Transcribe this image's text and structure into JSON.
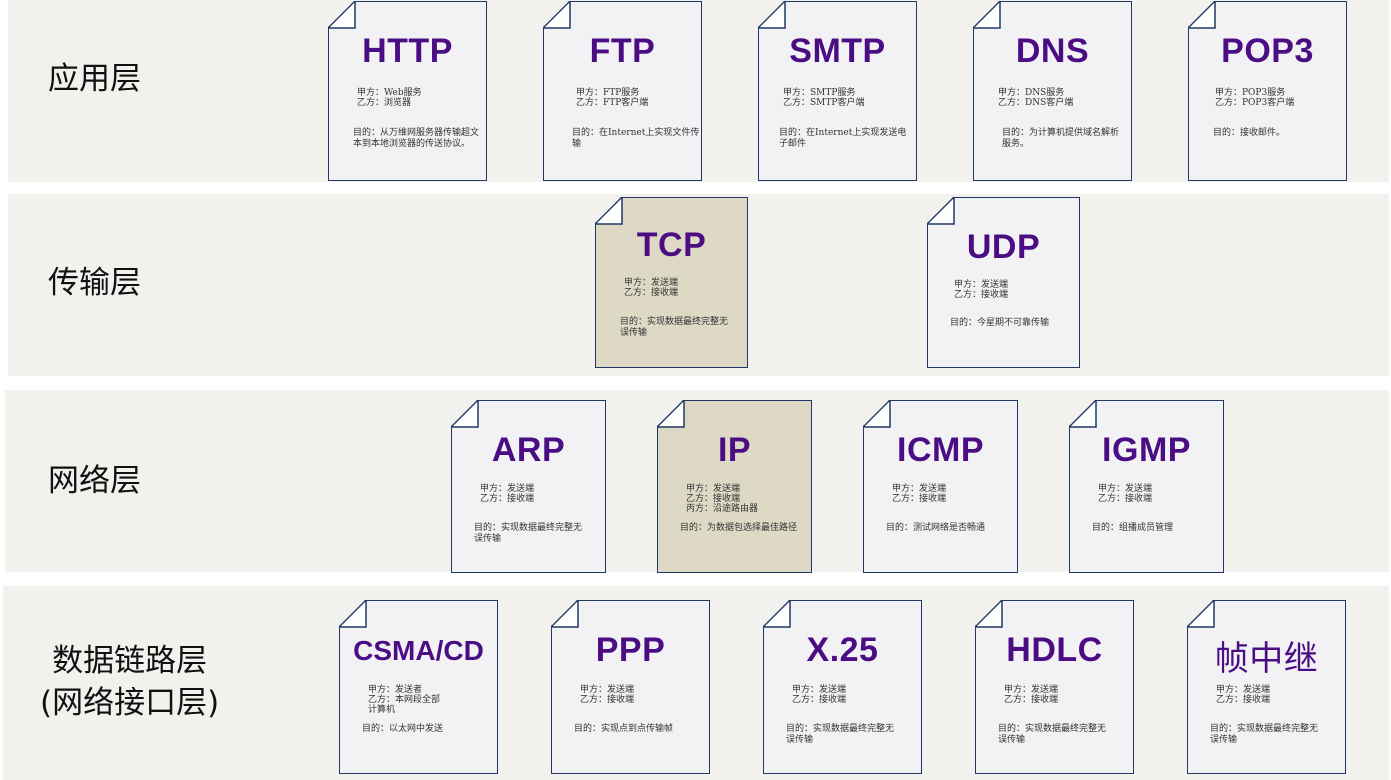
{
  "layers": [
    {
      "label": "应用层",
      "protocols": [
        {
          "title": "HTTP",
          "roles": "甲方：Web服务\n乙方：浏览器",
          "purpose": "目的：从万维网服务器传输超文\n本到本地浏览器的传送协议。",
          "highlight": false
        },
        {
          "title": "FTP",
          "roles": "甲方：FTP服务\n乙方：FTP客户端",
          "purpose": "目的：在Internet上实现文件传输",
          "highlight": false
        },
        {
          "title": "SMTP",
          "roles": "甲方：SMTP服务\n乙方：SMTP客户端",
          "purpose": "目的：在Internet上实现发送电\n子邮件",
          "highlight": false
        },
        {
          "title": "DNS",
          "roles": "甲方：DNS服务\n乙方：DNS客户端",
          "purpose": "目的：为计算机提供域名解析\n服务。",
          "highlight": false
        },
        {
          "title": "POP3",
          "roles": "甲方：POP3服务\n乙方：POP3客户端",
          "purpose": "目的：接收邮件。",
          "highlight": false
        }
      ]
    },
    {
      "label": "传输层",
      "protocols": [
        {
          "title": "TCP",
          "roles": "甲方：发送端\n乙方：接收端",
          "purpose": "目的：实现数据最终完整无\n误传输",
          "highlight": true
        },
        {
          "title": "UDP",
          "roles": "甲方：发送端\n乙方：接收端",
          "purpose": "目的：今星期不可靠传输",
          "highlight": false
        }
      ]
    },
    {
      "label": "网络层",
      "protocols": [
        {
          "title": "ARP",
          "roles": "甲方：发送端\n乙方：接收端",
          "purpose": "目的：实现数据最终完整无\n误传输",
          "highlight": false
        },
        {
          "title": "IP",
          "roles": "甲方：发送端\n乙方：接收端\n丙方：沿途路由器",
          "purpose": "目的：为数据包选择最佳路径",
          "highlight": true
        },
        {
          "title": "ICMP",
          "roles": "甲方：发送端\n乙方：接收端",
          "purpose": "目的：测试网络是否畅通",
          "highlight": false
        },
        {
          "title": "IGMP",
          "roles": "甲方：发送端\n乙方：接收端",
          "purpose": "目的：组播成员管理",
          "highlight": false
        }
      ]
    },
    {
      "label": "数据链路层\n(网络接口层)",
      "protocols": [
        {
          "title": "CSMA/CD",
          "roles": "甲方：发送者\n乙方：本网段全部\n计算机",
          "purpose": "目的：以太网中发送",
          "highlight": false
        },
        {
          "title": "PPP",
          "roles": "甲方：发送端\n乙方：接收端",
          "purpose": "目的：实现点到点传输帧",
          "highlight": false
        },
        {
          "title": "X.25",
          "roles": "甲方：发送端\n乙方：接收端",
          "purpose": "目的：实现数据最终完整无\n误传输",
          "highlight": false
        },
        {
          "title": "HDLC",
          "roles": "甲方：发送端\n乙方：接收端",
          "purpose": "目的：实现数据最终完整无\n误传输",
          "highlight": false
        },
        {
          "title": "帧中继",
          "roles": "甲方：发送端\n乙方：接收端",
          "purpose": "目的：实现数据最终完整无\n误传输",
          "highlight": false
        }
      ]
    }
  ],
  "colors": {
    "band": "#f2f1ee",
    "title": "#4b0d83",
    "border": "#1f3864",
    "card": "#f2f2f4",
    "card_highlight": "#ddd9c4"
  }
}
